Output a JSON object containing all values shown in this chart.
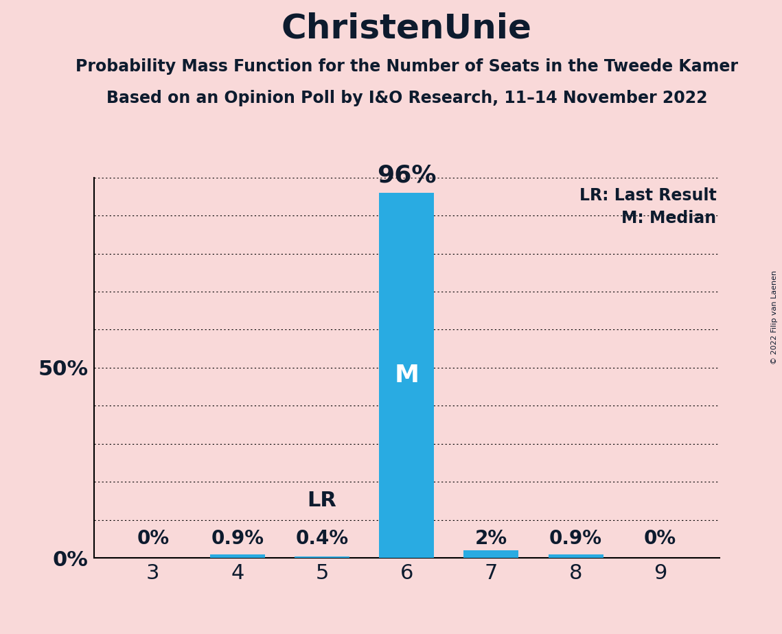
{
  "title": "ChristenUnie",
  "subtitle1": "Probability Mass Function for the Number of Seats in the Tweede Kamer",
  "subtitle2": "Based on an Opinion Poll by I&O Research, 11–14 November 2022",
  "copyright_text": "© 2022 Filip van Laenen",
  "legend_lr": "LR: Last Result",
  "legend_m": "M: Median",
  "categories": [
    3,
    4,
    5,
    6,
    7,
    8,
    9
  ],
  "values": [
    0.0,
    0.9,
    0.4,
    96.0,
    2.0,
    0.9,
    0.0
  ],
  "labels": [
    "0%",
    "0.9%",
    "0.4%",
    "96%",
    "2%",
    "0.9%",
    "0%"
  ],
  "bar_color": "#29ABE2",
  "background_color": "#F9D9D9",
  "median_seat": 6,
  "lr_seat": 5,
  "lr_label": "LR",
  "median_label": "M",
  "ylim": [
    0,
    100
  ],
  "title_fontsize": 36,
  "subtitle_fontsize": 17,
  "bar_label_fontsize": 20,
  "bar_label_96_fontsize": 26,
  "median_fontsize": 26,
  "legend_fontsize": 17,
  "xtick_fontsize": 22,
  "ytick_fontsize": 22,
  "copyright_fontsize": 8,
  "text_color": "#0d1b2e"
}
